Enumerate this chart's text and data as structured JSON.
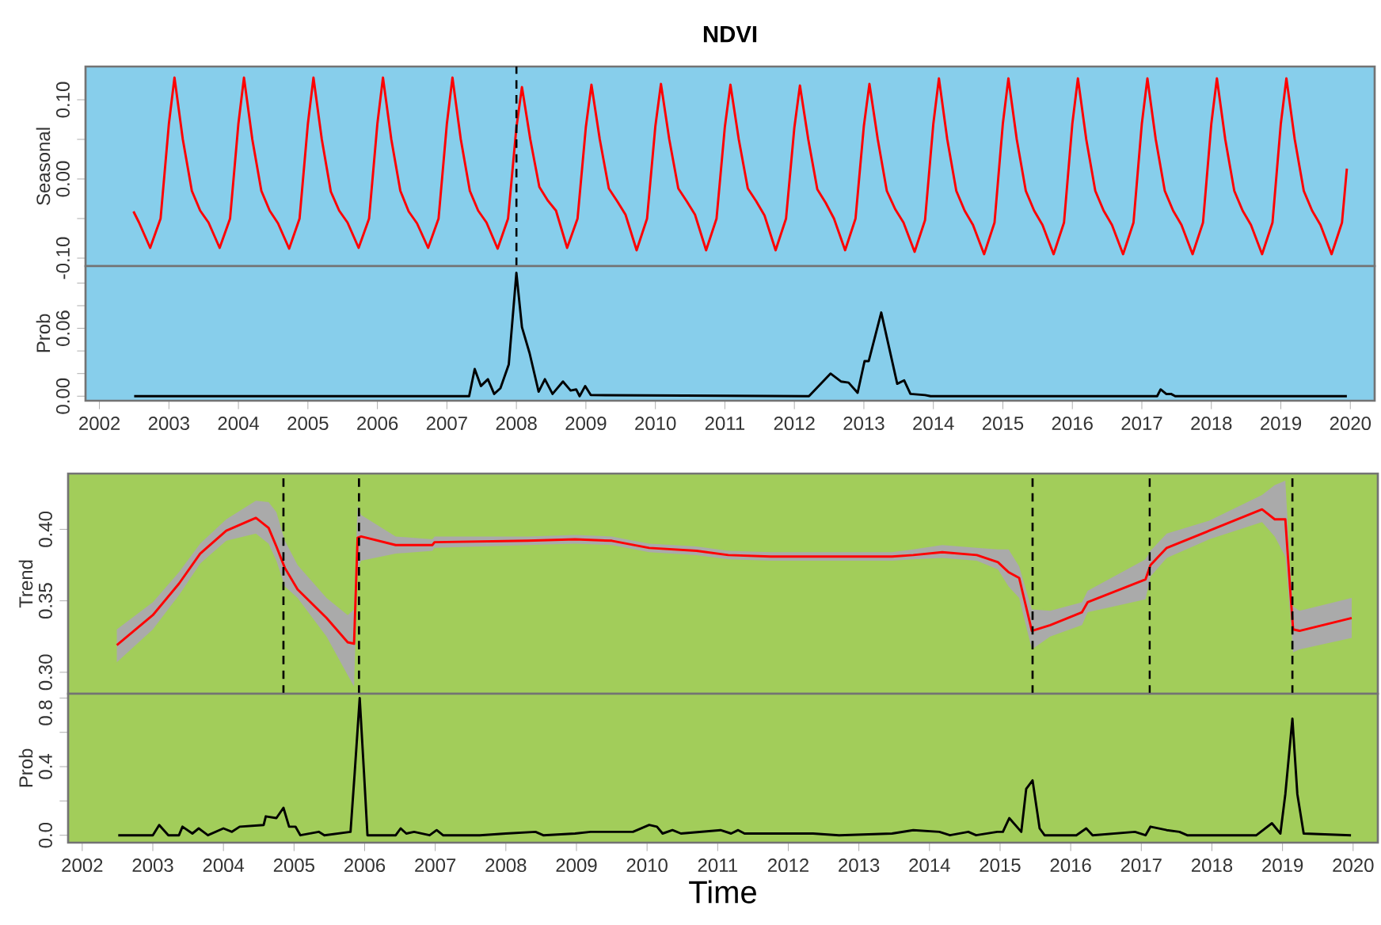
{
  "chart_data": [
    {
      "type": "line",
      "title": "NDVI",
      "ylabel": "Seasonal",
      "xlim": [
        2001.8,
        2020.35
      ],
      "xticks": [
        2002,
        2003,
        2004,
        2005,
        2006,
        2007,
        2008,
        2009,
        2010,
        2011,
        2012,
        2013,
        2014,
        2015,
        2016,
        2017,
        2018,
        2019,
        2020
      ],
      "ylim": [
        -0.11,
        0.142
      ],
      "yticks": [
        {
          "value": -0.1,
          "label": "-0.10"
        },
        {
          "value": -0.05,
          "label": null
        },
        {
          "value": 0,
          "label": "0.00"
        },
        {
          "value": 0.05,
          "label": null
        },
        {
          "value": 0.1,
          "label": "0.10"
        }
      ],
      "tick_labels": "y",
      "ref_lines": [
        {
          "axis": "x",
          "value": 2008.0,
          "line_style": "dashed",
          "color": "#000000"
        }
      ],
      "series": [
        {
          "color": "#ff0000",
          "x": [
            2002.49,
            2002.57,
            2002.73,
            2002.88,
            2003.0,
            2003.08,
            2003.2,
            2003.33,
            2003.45,
            2003.57,
            2003.73,
            2003.88,
            2004.0,
            2004.08,
            2004.2,
            2004.33,
            2004.45,
            2004.57,
            2004.73,
            2004.88,
            2005.0,
            2005.08,
            2005.2,
            2005.33,
            2005.45,
            2005.57,
            2005.73,
            2005.88,
            2006.0,
            2006.08,
            2006.2,
            2006.33,
            2006.45,
            2006.57,
            2006.73,
            2006.88,
            2007.0,
            2007.08,
            2007.2,
            2007.33,
            2007.45,
            2007.57,
            2007.73,
            2007.88,
            2008.0,
            2008.08,
            2008.2,
            2008.33,
            2008.45,
            2008.57,
            2008.73,
            2008.88,
            2009.0,
            2009.08,
            2009.2,
            2009.33,
            2009.45,
            2009.57,
            2009.73,
            2009.88,
            2010.0,
            2010.08,
            2010.2,
            2010.33,
            2010.45,
            2010.57,
            2010.73,
            2010.88,
            2011.0,
            2011.08,
            2011.2,
            2011.33,
            2011.45,
            2011.57,
            2011.73,
            2011.88,
            2012.0,
            2012.08,
            2012.2,
            2012.33,
            2012.45,
            2012.57,
            2012.73,
            2012.88,
            2013.0,
            2013.08,
            2013.2,
            2013.33,
            2013.45,
            2013.57,
            2013.73,
            2013.88,
            2014.0,
            2014.08,
            2014.2,
            2014.33,
            2014.45,
            2014.57,
            2014.73,
            2014.88,
            2015.0,
            2015.08,
            2015.2,
            2015.33,
            2015.45,
            2015.57,
            2015.73,
            2015.88,
            2016.0,
            2016.08,
            2016.2,
            2016.33,
            2016.45,
            2016.57,
            2016.73,
            2016.88,
            2017.0,
            2017.08,
            2017.2,
            2017.33,
            2017.45,
            2017.57,
            2017.73,
            2017.88,
            2018.0,
            2018.08,
            2018.2,
            2018.33,
            2018.45,
            2018.57,
            2018.73,
            2018.88,
            2019.0,
            2019.08,
            2019.2,
            2019.33,
            2019.45,
            2019.57,
            2019.73,
            2019.88,
            2019.95
          ],
          "values": [
            -0.041,
            -0.055,
            -0.087,
            -0.05,
            0.07,
            0.128,
            0.05,
            -0.015,
            -0.04,
            -0.055,
            -0.087,
            -0.05,
            0.07,
            0.128,
            0.05,
            -0.015,
            -0.04,
            -0.056,
            -0.088,
            -0.05,
            0.07,
            0.128,
            0.05,
            -0.016,
            -0.04,
            -0.055,
            -0.087,
            -0.05,
            0.07,
            0.128,
            0.05,
            -0.015,
            -0.041,
            -0.056,
            -0.087,
            -0.05,
            0.07,
            0.128,
            0.05,
            -0.015,
            -0.04,
            -0.055,
            -0.088,
            -0.05,
            0.065,
            0.116,
            0.05,
            -0.01,
            -0.027,
            -0.04,
            -0.087,
            -0.05,
            0.066,
            0.119,
            0.05,
            -0.012,
            -0.028,
            -0.045,
            -0.09,
            -0.05,
            0.067,
            0.12,
            0.05,
            -0.012,
            -0.028,
            -0.045,
            -0.09,
            -0.05,
            0.066,
            0.119,
            0.05,
            -0.012,
            -0.028,
            -0.046,
            -0.09,
            -0.05,
            0.065,
            0.118,
            0.05,
            -0.013,
            -0.03,
            -0.05,
            -0.09,
            -0.05,
            0.067,
            0.12,
            0.05,
            -0.015,
            -0.038,
            -0.055,
            -0.092,
            -0.052,
            0.07,
            0.127,
            0.05,
            -0.015,
            -0.04,
            -0.058,
            -0.095,
            -0.055,
            0.07,
            0.127,
            0.05,
            -0.015,
            -0.04,
            -0.058,
            -0.095,
            -0.055,
            0.07,
            0.127,
            0.05,
            -0.015,
            -0.04,
            -0.058,
            -0.095,
            -0.055,
            0.07,
            0.127,
            0.05,
            -0.015,
            -0.04,
            -0.058,
            -0.095,
            -0.055,
            0.07,
            0.127,
            0.05,
            -0.015,
            -0.04,
            -0.058,
            -0.095,
            -0.055,
            0.07,
            0.127,
            0.05,
            -0.015,
            -0.04,
            -0.058,
            -0.095,
            -0.055,
            0.013
          ]
        }
      ]
    },
    {
      "type": "line",
      "ylabel": "Prob",
      "xlim": [
        2001.8,
        2020.35
      ],
      "xticks": [
        2002,
        2003,
        2004,
        2005,
        2006,
        2007,
        2008,
        2009,
        2010,
        2011,
        2012,
        2013,
        2014,
        2015,
        2016,
        2017,
        2018,
        2019,
        2020
      ],
      "ylim": [
        -0.004,
        0.115
      ],
      "yticks": [
        {
          "value": 0,
          "label": "0.00"
        },
        {
          "value": 0.02,
          "label": null
        },
        {
          "value": 0.04,
          "label": null
        },
        {
          "value": 0.06,
          "label": "0.06"
        },
        {
          "value": 0.08,
          "label": null
        },
        {
          "value": 0.1,
          "label": null
        }
      ],
      "series": [
        {
          "color": "#000000",
          "x": [
            2002.5,
            2007.32,
            2007.4,
            2007.49,
            2007.59,
            2007.68,
            2007.77,
            2007.89,
            2008.0,
            2008.08,
            2008.19,
            2008.32,
            2008.41,
            2008.52,
            2008.67,
            2008.78,
            2008.86,
            2008.91,
            2008.99,
            2009.07,
            2012.21,
            2012.52,
            2012.67,
            2012.78,
            2012.91,
            2013.01,
            2013.07,
            2013.25,
            2013.48,
            2013.58,
            2013.67,
            2013.88,
            2013.96,
            2017.22,
            2017.27,
            2017.35,
            2017.42,
            2017.48,
            2019.95
          ],
          "values": [
            0,
            0,
            0.024,
            0.009,
            0.015,
            0.002,
            0.007,
            0.028,
            0.109,
            0.061,
            0.038,
            0.004,
            0.015,
            0.002,
            0.013,
            0.005,
            0.006,
            0,
            0.009,
            0.001,
            0,
            0.02,
            0.013,
            0.012,
            0.003,
            0.031,
            0.031,
            0.074,
            0.011,
            0.014,
            0.002,
            0.001,
            0,
            0,
            0.006,
            0.002,
            0.002,
            0,
            0
          ]
        }
      ]
    },
    {
      "type": "line",
      "ylabel": "Trend",
      "xlim": [
        2001.8,
        2020.35
      ],
      "xticks": [
        2002,
        2003,
        2004,
        2005,
        2006,
        2007,
        2008,
        2009,
        2010,
        2011,
        2012,
        2013,
        2014,
        2015,
        2016,
        2017,
        2018,
        2019,
        2020
      ],
      "ylim": [
        0.285,
        0.439
      ],
      "yticks": [
        {
          "value": 0.3,
          "label": "0.30"
        },
        {
          "value": 0.35,
          "label": "0.35"
        },
        {
          "value": 0.4,
          "label": "0.40"
        }
      ],
      "tick_labels": "y",
      "ref_lines": [
        {
          "axis": "x",
          "value": 2004.85,
          "line_style": "dashed",
          "color": "#000000"
        },
        {
          "axis": "x",
          "value": 2005.92,
          "line_style": "dashed",
          "color": "#000000"
        },
        {
          "axis": "x",
          "value": 2015.46,
          "line_style": "dashed",
          "color": "#000000"
        },
        {
          "axis": "x",
          "value": 2017.12,
          "line_style": "dashed",
          "color": "#000000"
        },
        {
          "axis": "x",
          "value": 2019.14,
          "line_style": "dashed",
          "color": "#000000"
        }
      ],
      "series": [
        {
          "color": "#ff0000",
          "x": [
            2002.49,
            2003.0,
            2003.37,
            2003.67,
            2004.04,
            2004.46,
            2004.64,
            2004.75,
            2004.87,
            2005.05,
            2005.46,
            2005.76,
            2005.85,
            2005.9,
            2005.95,
            2006.44,
            2006.96,
            2006.99,
            2008.31,
            2008.98,
            2009.5,
            2010.03,
            2010.7,
            2011.15,
            2011.75,
            2013.47,
            2013.77,
            2014.18,
            2014.67,
            2014.97,
            2015.12,
            2015.27,
            2015.45,
            2015.71,
            2016.16,
            2016.24,
            2017.06,
            2017.13,
            2017.36,
            2017.96,
            2018.71,
            2018.89,
            2019.04,
            2019.11,
            2019.15,
            2019.24,
            2019.98
          ],
          "values": [
            0.319,
            0.34,
            0.362,
            0.383,
            0.399,
            0.408,
            0.401,
            0.388,
            0.373,
            0.358,
            0.338,
            0.321,
            0.32,
            0.394,
            0.395,
            0.389,
            0.389,
            0.391,
            0.392,
            0.393,
            0.392,
            0.387,
            0.385,
            0.382,
            0.381,
            0.381,
            0.382,
            0.384,
            0.382,
            0.377,
            0.37,
            0.366,
            0.329,
            0.333,
            0.342,
            0.349,
            0.365,
            0.375,
            0.387,
            0.399,
            0.414,
            0.407,
            0.407,
            0.357,
            0.33,
            0.329,
            0.338
          ],
          "lower": [
            0.307,
            0.33,
            0.354,
            0.376,
            0.392,
            0.397,
            0.39,
            0.378,
            0.36,
            0.352,
            0.325,
            0.298,
            0.29,
            0.372,
            0.378,
            0.383,
            0.385,
            0.387,
            0.389,
            0.39,
            0.389,
            0.384,
            0.382,
            0.379,
            0.378,
            0.378,
            0.379,
            0.38,
            0.378,
            0.372,
            0.36,
            0.352,
            0.316,
            0.325,
            0.333,
            0.342,
            0.351,
            0.367,
            0.38,
            0.393,
            0.405,
            0.395,
            0.381,
            0.34,
            0.314,
            0.316,
            0.324
          ],
          "upper": [
            0.33,
            0.349,
            0.37,
            0.39,
            0.407,
            0.42,
            0.419,
            0.412,
            0.392,
            0.375,
            0.352,
            0.34,
            0.344,
            0.417,
            0.41,
            0.395,
            0.393,
            0.395,
            0.395,
            0.396,
            0.395,
            0.39,
            0.388,
            0.385,
            0.384,
            0.384,
            0.386,
            0.389,
            0.387,
            0.386,
            0.386,
            0.374,
            0.344,
            0.343,
            0.349,
            0.357,
            0.379,
            0.385,
            0.397,
            0.406,
            0.424,
            0.431,
            0.434,
            0.372,
            0.346,
            0.343,
            0.352
          ]
        }
      ]
    },
    {
      "type": "line",
      "ylabel": "Prob",
      "xlabel": "Time",
      "xlim": [
        2001.8,
        2020.35
      ],
      "xticks": [
        2002,
        2003,
        2004,
        2005,
        2006,
        2007,
        2008,
        2009,
        2010,
        2011,
        2012,
        2013,
        2014,
        2015,
        2016,
        2017,
        2018,
        2019,
        2020
      ],
      "ylim": [
        -0.043,
        0.825
      ],
      "yticks": [
        {
          "value": 0,
          "label": "0.0"
        },
        {
          "value": 0.2,
          "label": null
        },
        {
          "value": 0.4,
          "label": "0.4"
        },
        {
          "value": 0.6,
          "label": null
        },
        {
          "value": 0.8,
          "label": "0.8"
        }
      ],
      "series": [
        {
          "color": "#000000",
          "x": [
            2002.51,
            2003.0,
            2003.09,
            2003.22,
            2003.37,
            2003.42,
            2003.56,
            2003.65,
            2003.78,
            2004.0,
            2004.12,
            2004.23,
            2004.57,
            2004.6,
            2004.75,
            2004.85,
            2004.93,
            2005.02,
            2005.09,
            2005.35,
            2005.43,
            2005.8,
            2005.86,
            2005.93,
            2005.99,
            2006.04,
            2006.44,
            2006.51,
            2006.59,
            2006.7,
            2006.92,
            2007.02,
            2007.11,
            2007.63,
            2008.0,
            2008.42,
            2008.53,
            2008.98,
            2009.2,
            2009.5,
            2009.8,
            2010.03,
            2010.14,
            2010.22,
            2010.36,
            2010.48,
            2011.04,
            2011.19,
            2011.29,
            2011.38,
            2012.35,
            2012.72,
            2013.47,
            2013.77,
            2014.14,
            2014.29,
            2014.55,
            2014.66,
            2014.96,
            2015.04,
            2015.13,
            2015.3,
            2015.37,
            2015.46,
            2015.56,
            2015.63,
            2016.08,
            2016.22,
            2016.31,
            2016.91,
            2017.06,
            2017.13,
            2017.36,
            2017.54,
            2017.65,
            2018.63,
            2018.85,
            2018.97,
            2019.04,
            2019.14,
            2019.21,
            2019.3,
            2019.97
          ],
          "values": [
            0,
            0,
            0.06,
            0,
            0,
            0.05,
            0.01,
            0.04,
            0,
            0.04,
            0.02,
            0.05,
            0.06,
            0.11,
            0.1,
            0.16,
            0.05,
            0.05,
            0,
            0.02,
            0,
            0.02,
            0.37,
            0.8,
            0.37,
            0,
            0,
            0.04,
            0.01,
            0.02,
            0,
            0.03,
            0,
            0,
            0.01,
            0.02,
            0,
            0.01,
            0.02,
            0.02,
            0.02,
            0.06,
            0.05,
            0.01,
            0.03,
            0.01,
            0.03,
            0.01,
            0.03,
            0.01,
            0.01,
            0,
            0.01,
            0.03,
            0.02,
            0,
            0.02,
            0,
            0.02,
            0.02,
            0.1,
            0.02,
            0.27,
            0.32,
            0.04,
            0,
            0,
            0.04,
            0,
            0.02,
            0,
            0.05,
            0.03,
            0.02,
            0,
            0,
            0.07,
            0.01,
            0.24,
            0.68,
            0.24,
            0.01,
            0
          ]
        }
      ]
    }
  ]
}
